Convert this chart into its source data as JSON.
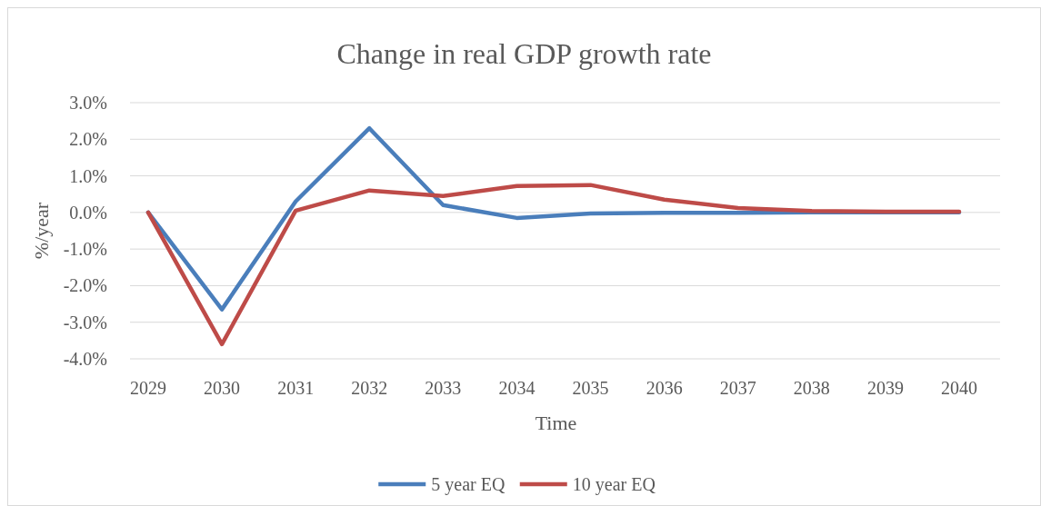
{
  "chart_data": {
    "type": "line",
    "title": "Change in real GDP growth rate",
    "xlabel": "Time",
    "ylabel": "%/year",
    "categories": [
      "2029",
      "2030",
      "2031",
      "2032",
      "2033",
      "2034",
      "2035",
      "2036",
      "2037",
      "2038",
      "2039",
      "2040"
    ],
    "series": [
      {
        "name": "5 year EQ",
        "color": "#4a7ebb",
        "values": [
          0,
          -2.65,
          0.3,
          2.3,
          0.2,
          -0.15,
          -0.03,
          -0.01,
          -0.01,
          0,
          0,
          0
        ]
      },
      {
        "name": "10 year EQ",
        "color": "#be4b48",
        "values": [
          0,
          -3.6,
          0.05,
          0.6,
          0.45,
          0.72,
          0.75,
          0.35,
          0.12,
          0.04,
          0.02,
          0.02
        ]
      }
    ],
    "ylim": [
      -4,
      3
    ],
    "yticks": [
      {
        "value": -4,
        "label": "-4.0%"
      },
      {
        "value": -3,
        "label": "-3.0%"
      },
      {
        "value": -2,
        "label": "-2.0%"
      },
      {
        "value": -1,
        "label": "-1.0%"
      },
      {
        "value": 0,
        "label": "0.0%"
      },
      {
        "value": 1,
        "label": "1.0%"
      },
      {
        "value": 2,
        "label": "2.0%"
      },
      {
        "value": 3,
        "label": "3.0%"
      }
    ],
    "grid": "y",
    "legend": "bottom",
    "marker": "none",
    "line_style": "solid"
  }
}
